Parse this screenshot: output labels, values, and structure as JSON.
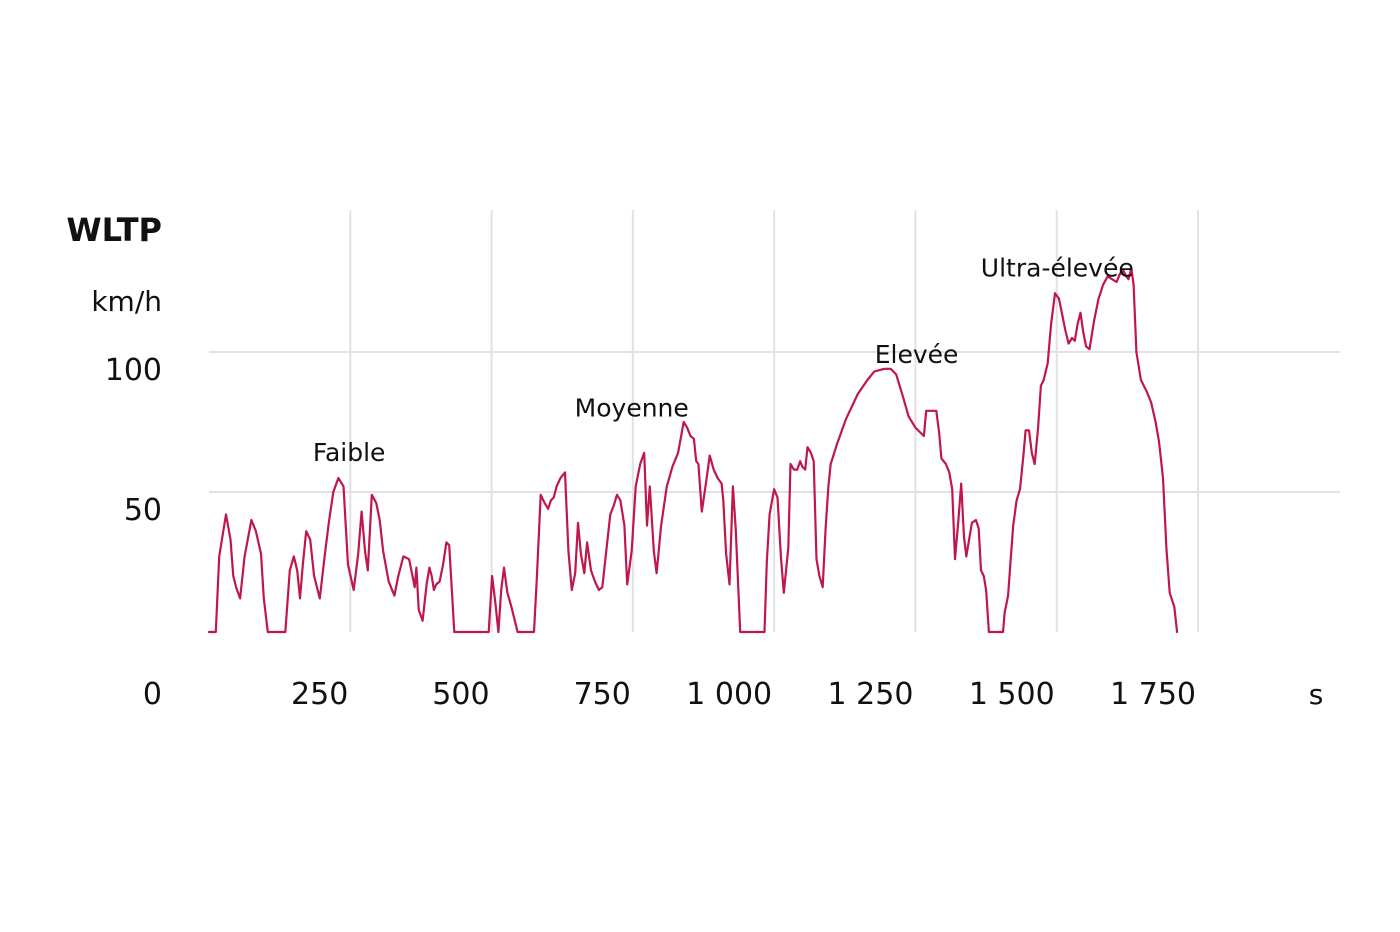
{
  "chart_data": {
    "type": "line",
    "title": "WLTP",
    "ylabel": "km/h",
    "xlabel": "s",
    "x_ticks": [
      250,
      500,
      750,
      1000,
      1250,
      1500,
      1750
    ],
    "x_tick_labels": [
      "250",
      "500",
      "750",
      "1 000",
      "1 250",
      "1 500",
      "1 750"
    ],
    "y_ticks": [
      0,
      50,
      100
    ],
    "y_tick_labels": [
      "0",
      "50",
      "100"
    ],
    "xlim": [
      0,
      1900
    ],
    "ylim": [
      0,
      135
    ],
    "grid": true,
    "line_color": "#c0174a",
    "phases": [
      {
        "label": "Faible",
        "x": 248,
        "y": 61
      },
      {
        "label": "Moyenne",
        "x": 748,
        "y": 77
      },
      {
        "label": "Elevée",
        "x": 1252,
        "y": 96
      },
      {
        "label": "Ultra-élevée",
        "x": 1501,
        "y": 127
      }
    ],
    "series": [
      {
        "values": [
          [
            0,
            0
          ],
          [
            12,
            0
          ],
          [
            18,
            27
          ],
          [
            30,
            42
          ],
          [
            38,
            33
          ],
          [
            43,
            20
          ],
          [
            48,
            16
          ],
          [
            55,
            12
          ],
          [
            63,
            27
          ],
          [
            75,
            40
          ],
          [
            83,
            36
          ],
          [
            92,
            28
          ],
          [
            97,
            12
          ],
          [
            104,
            0
          ],
          [
            135,
            0
          ],
          [
            143,
            22
          ],
          [
            150,
            27
          ],
          [
            156,
            22
          ],
          [
            161,
            12
          ],
          [
            166,
            24
          ],
          [
            172,
            36
          ],
          [
            179,
            33
          ],
          [
            186,
            20
          ],
          [
            196,
            12
          ],
          [
            204,
            26
          ],
          [
            212,
            39
          ],
          [
            220,
            50
          ],
          [
            229,
            55
          ],
          [
            238,
            52
          ],
          [
            246,
            24
          ],
          [
            256,
            15
          ],
          [
            264,
            28
          ],
          [
            270,
            43
          ],
          [
            276,
            29
          ],
          [
            281,
            22
          ],
          [
            288,
            49
          ],
          [
            296,
            46
          ],
          [
            302,
            40
          ],
          [
            308,
            29
          ],
          [
            318,
            18
          ],
          [
            328,
            13
          ],
          [
            335,
            20
          ],
          [
            344,
            27
          ],
          [
            354,
            26
          ],
          [
            360,
            20
          ],
          [
            364,
            16
          ],
          [
            367,
            23
          ],
          [
            371,
            8
          ],
          [
            378,
            4
          ],
          [
            385,
            17
          ],
          [
            390,
            23
          ],
          [
            394,
            20
          ],
          [
            398,
            15
          ],
          [
            402,
            17
          ],
          [
            408,
            18
          ],
          [
            414,
            24
          ],
          [
            420,
            32
          ],
          [
            425,
            31
          ],
          [
            434,
            0
          ],
          [
            495,
            0
          ],
          [
            501,
            20
          ],
          [
            507,
            10
          ],
          [
            512,
            0
          ],
          [
            517,
            15
          ],
          [
            522,
            23
          ],
          [
            528,
            14
          ],
          [
            535,
            9
          ],
          [
            546,
            0
          ],
          [
            575,
            0
          ],
          [
            580,
            19
          ],
          [
            587,
            49
          ],
          [
            594,
            46
          ],
          [
            600,
            44
          ],
          [
            605,
            47
          ],
          [
            610,
            48
          ],
          [
            615,
            52
          ],
          [
            622,
            55
          ],
          [
            630,
            57
          ],
          [
            636,
            29
          ],
          [
            642,
            15
          ],
          [
            648,
            21
          ],
          [
            653,
            39
          ],
          [
            658,
            28
          ],
          [
            664,
            21
          ],
          [
            669,
            32
          ],
          [
            676,
            22
          ],
          [
            683,
            18
          ],
          [
            690,
            15
          ],
          [
            696,
            16
          ],
          [
            703,
            29
          ],
          [
            710,
            42
          ],
          [
            716,
            45
          ],
          [
            722,
            49
          ],
          [
            728,
            47
          ],
          [
            735,
            38
          ],
          [
            740,
            17
          ],
          [
            748,
            29
          ],
          [
            755,
            52
          ],
          [
            763,
            60
          ],
          [
            770,
            64
          ],
          [
            775,
            38
          ],
          [
            780,
            52
          ],
          [
            787,
            29
          ],
          [
            792,
            21
          ],
          [
            800,
            38
          ],
          [
            810,
            52
          ],
          [
            820,
            59
          ],
          [
            830,
            64
          ],
          [
            840,
            75
          ],
          [
            846,
            73
          ],
          [
            852,
            70
          ],
          [
            858,
            69
          ],
          [
            862,
            61
          ],
          [
            866,
            60
          ],
          [
            872,
            43
          ],
          [
            880,
            54
          ],
          [
            886,
            63
          ],
          [
            893,
            58
          ],
          [
            900,
            55
          ],
          [
            907,
            53
          ],
          [
            910,
            47
          ],
          [
            915,
            28
          ],
          [
            921,
            17
          ],
          [
            927,
            52
          ],
          [
            932,
            37
          ],
          [
            940,
            0
          ],
          [
            983,
            0
          ],
          [
            987,
            25
          ],
          [
            992,
            42
          ],
          [
            1000,
            51
          ],
          [
            1006,
            48
          ],
          [
            1012,
            27
          ],
          [
            1017,
            14
          ],
          [
            1025,
            30
          ],
          [
            1029,
            60
          ],
          [
            1035,
            58
          ],
          [
            1041,
            58
          ],
          [
            1046,
            61
          ],
          [
            1050,
            59
          ],
          [
            1055,
            58
          ],
          [
            1059,
            66
          ],
          [
            1065,
            64
          ],
          [
            1070,
            61
          ],
          [
            1075,
            26
          ],
          [
            1080,
            20
          ],
          [
            1086,
            16
          ],
          [
            1091,
            37
          ],
          [
            1096,
            52
          ],
          [
            1100,
            60
          ],
          [
            1111,
            67
          ],
          [
            1127,
            76
          ],
          [
            1148,
            85
          ],
          [
            1165,
            90
          ],
          [
            1177,
            93
          ],
          [
            1195,
            94
          ],
          [
            1206,
            94
          ],
          [
            1216,
            92
          ],
          [
            1228,
            84
          ],
          [
            1238,
            77
          ],
          [
            1250,
            73
          ],
          [
            1265,
            70
          ],
          [
            1269,
            79
          ],
          [
            1287,
            79
          ],
          [
            1292,
            71
          ],
          [
            1296,
            62
          ],
          [
            1304,
            60
          ],
          [
            1310,
            57
          ],
          [
            1315,
            51
          ],
          [
            1320,
            26
          ],
          [
            1326,
            40
          ],
          [
            1331,
            53
          ],
          [
            1336,
            34
          ],
          [
            1340,
            27
          ],
          [
            1350,
            39
          ],
          [
            1357,
            40
          ],
          [
            1362,
            37
          ],
          [
            1366,
            22
          ],
          [
            1371,
            20
          ],
          [
            1375,
            15
          ],
          [
            1380,
            0
          ],
          [
            1405,
            0
          ],
          [
            1408,
            7
          ],
          [
            1414,
            13
          ],
          [
            1419,
            27
          ],
          [
            1423,
            38
          ],
          [
            1429,
            47
          ],
          [
            1435,
            51
          ],
          [
            1441,
            63
          ],
          [
            1445,
            72
          ],
          [
            1451,
            72
          ],
          [
            1456,
            64
          ],
          [
            1461,
            60
          ],
          [
            1467,
            73
          ],
          [
            1472,
            88
          ],
          [
            1477,
            90
          ],
          [
            1484,
            96
          ],
          [
            1490,
            110
          ],
          [
            1497,
            121
          ],
          [
            1504,
            119
          ],
          [
            1510,
            113
          ],
          [
            1515,
            108
          ],
          [
            1521,
            103
          ],
          [
            1527,
            105
          ],
          [
            1532,
            104
          ],
          [
            1537,
            110
          ],
          [
            1542,
            114
          ],
          [
            1547,
            107
          ],
          [
            1552,
            102
          ],
          [
            1558,
            101
          ],
          [
            1566,
            111
          ],
          [
            1574,
            119
          ],
          [
            1582,
            124
          ],
          [
            1590,
            127
          ],
          [
            1598,
            126
          ],
          [
            1606,
            125
          ],
          [
            1612,
            128
          ],
          [
            1618,
            129
          ],
          [
            1623,
            127
          ],
          [
            1627,
            126
          ],
          [
            1632,
            130
          ],
          [
            1636,
            124
          ],
          [
            1641,
            100
          ],
          [
            1649,
            90
          ],
          [
            1659,
            86
          ],
          [
            1667,
            82
          ],
          [
            1675,
            75
          ],
          [
            1681,
            68
          ],
          [
            1688,
            55
          ],
          [
            1694,
            30
          ],
          [
            1700,
            14
          ],
          [
            1708,
            9
          ],
          [
            1713,
            0
          ]
        ]
      }
    ]
  }
}
